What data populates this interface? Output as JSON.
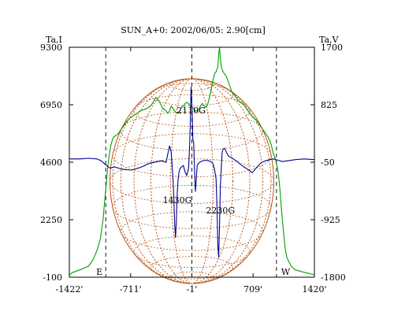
{
  "chart_data": {
    "type": "line",
    "title": "SUN_A+0: 2002/06/05: 2.90[cm]",
    "y_left_label": "Ta,I",
    "y_right_label": "Ta,V",
    "x_ticks": [
      -1422,
      -711,
      -1,
      709,
      1420
    ],
    "x_tick_labels": [
      "-1422'",
      "-711'",
      "-1'",
      "709'",
      "1420'"
    ],
    "xlim": [
      -1422,
      1420
    ],
    "y_left_ticks": [
      -100,
      2250,
      4600,
      6950,
      9300
    ],
    "y_left_tick_labels": [
      "-100",
      "2250",
      "4600",
      "6950",
      "9300"
    ],
    "ylim_left": [
      -100,
      9300
    ],
    "y_right_ticks": [
      -1800,
      -925,
      -50,
      825,
      1700
    ],
    "y_right_tick_labels": [
      "-1800",
      "-925",
      "-50",
      "825",
      "1700"
    ],
    "ylim_right": [
      -1800,
      1700
    ],
    "limb_markers": [
      {
        "x": -1000,
        "label": "E"
      },
      {
        "x": 980,
        "label": "W"
      }
    ],
    "center_line_x": -1,
    "disk_radius": 950,
    "annotations": [
      {
        "text": "2110G",
        "x": -10,
        "y_left": 6600
      },
      {
        "text": "1430G",
        "x": -170,
        "y_left": 2920
      },
      {
        "text": "2230G",
        "x": 330,
        "y_left": 2500
      }
    ],
    "colors": {
      "intensity": "#00a000",
      "polarization": "#000090",
      "grid": "#b85c1e",
      "axes": "#000000"
    },
    "series": [
      {
        "axis": "left",
        "x": [
          -1422,
          -1380,
          -1300,
          -1200,
          -1150,
          -1100,
          -1060,
          -1030,
          -1000,
          -980,
          -960,
          -940,
          -920,
          -900,
          -880,
          -860,
          -840,
          -820,
          -800,
          -760,
          -720,
          -680,
          -640,
          -600,
          -560,
          -520,
          -480,
          -440,
          -420,
          -380,
          -340,
          -300,
          -280,
          -260,
          -240,
          -220,
          -200,
          -180,
          -160,
          -140,
          -120,
          -100,
          -80,
          -60,
          -40,
          -20,
          0,
          20,
          40,
          60,
          80,
          100,
          120,
          140,
          160,
          180,
          200,
          220,
          240,
          260,
          280,
          300,
          310,
          320,
          330,
          340,
          350,
          360,
          380,
          400,
          420,
          440,
          460,
          480,
          500,
          520,
          540,
          560,
          580,
          600,
          620,
          640,
          660,
          680,
          700,
          720,
          740,
          760,
          780,
          800,
          820,
          840,
          860,
          880,
          900,
          920,
          940,
          960,
          980,
          1000,
          1020,
          1040,
          1060,
          1080,
          1100,
          1150,
          1200,
          1300,
          1420
        ],
        "values": [
          0,
          100,
          200,
          350,
          600,
          1000,
          1500,
          2300,
          3500,
          4300,
          4900,
          5300,
          5550,
          5650,
          5700,
          5750,
          5850,
          5950,
          6050,
          6250,
          6400,
          6500,
          6600,
          6700,
          6750,
          6800,
          6900,
          7100,
          7250,
          7100,
          6800,
          6700,
          6600,
          6700,
          6900,
          6800,
          6700,
          6600,
          6650,
          6700,
          6850,
          6900,
          7000,
          7050,
          7000,
          6900,
          6850,
          6800,
          6700,
          6700,
          6800,
          6900,
          7000,
          6900,
          6850,
          6950,
          7200,
          7500,
          7900,
          8200,
          8300,
          8500,
          9000,
          9300,
          8800,
          8500,
          8400,
          8300,
          8200,
          8100,
          7900,
          7700,
          7500,
          7400,
          7300,
          7200,
          7100,
          7050,
          7000,
          6950,
          6850,
          6750,
          6650,
          6550,
          6450,
          6400,
          6350,
          6250,
          6150,
          6050,
          5950,
          5850,
          5750,
          5650,
          5500,
          5300,
          5000,
          4800,
          4550,
          4200,
          3500,
          2600,
          1800,
          1100,
          700,
          350,
          200,
          100,
          0
        ]
      },
      {
        "axis": "right",
        "x": [
          -1422,
          -1300,
          -1200,
          -1100,
          -1050,
          -1000,
          -950,
          -900,
          -850,
          -800,
          -700,
          -600,
          -500,
          -400,
          -350,
          -300,
          -280,
          -260,
          -240,
          -230,
          -220,
          -210,
          -200,
          -190,
          -180,
          -170,
          -160,
          -150,
          -140,
          -120,
          -100,
          -80,
          -60,
          -40,
          -30,
          -20,
          -10,
          0,
          10,
          20,
          30,
          40,
          60,
          80,
          120,
          160,
          200,
          240,
          260,
          280,
          290,
          300,
          310,
          320,
          330,
          340,
          350,
          360,
          380,
          400,
          420,
          440,
          460,
          480,
          500,
          520,
          540,
          560,
          600,
          650,
          700,
          750,
          800,
          850,
          900,
          950,
          1000,
          1050,
          1100,
          1200,
          1300,
          1420
        ],
        "values": [
          0,
          0,
          10,
          0,
          -30,
          -90,
          -140,
          -120,
          -140,
          -160,
          -170,
          -130,
          -70,
          -40,
          -30,
          -50,
          80,
          200,
          100,
          -100,
          -300,
          -600,
          -1000,
          -1200,
          -900,
          -500,
          -300,
          -200,
          -150,
          -120,
          -100,
          -200,
          -250,
          -150,
          100,
          500,
          1100,
          800,
          300,
          250,
          -200,
          -500,
          -100,
          -60,
          -30,
          -20,
          -30,
          -60,
          -150,
          -300,
          -700,
          -1300,
          -1500,
          -1000,
          -400,
          -150,
          100,
          150,
          160,
          100,
          50,
          30,
          20,
          0,
          -20,
          -30,
          -60,
          -80,
          -120,
          -160,
          -210,
          -130,
          -60,
          -30,
          -10,
          0,
          -20,
          -40,
          -30,
          -10,
          0,
          -10
        ]
      }
    ]
  }
}
